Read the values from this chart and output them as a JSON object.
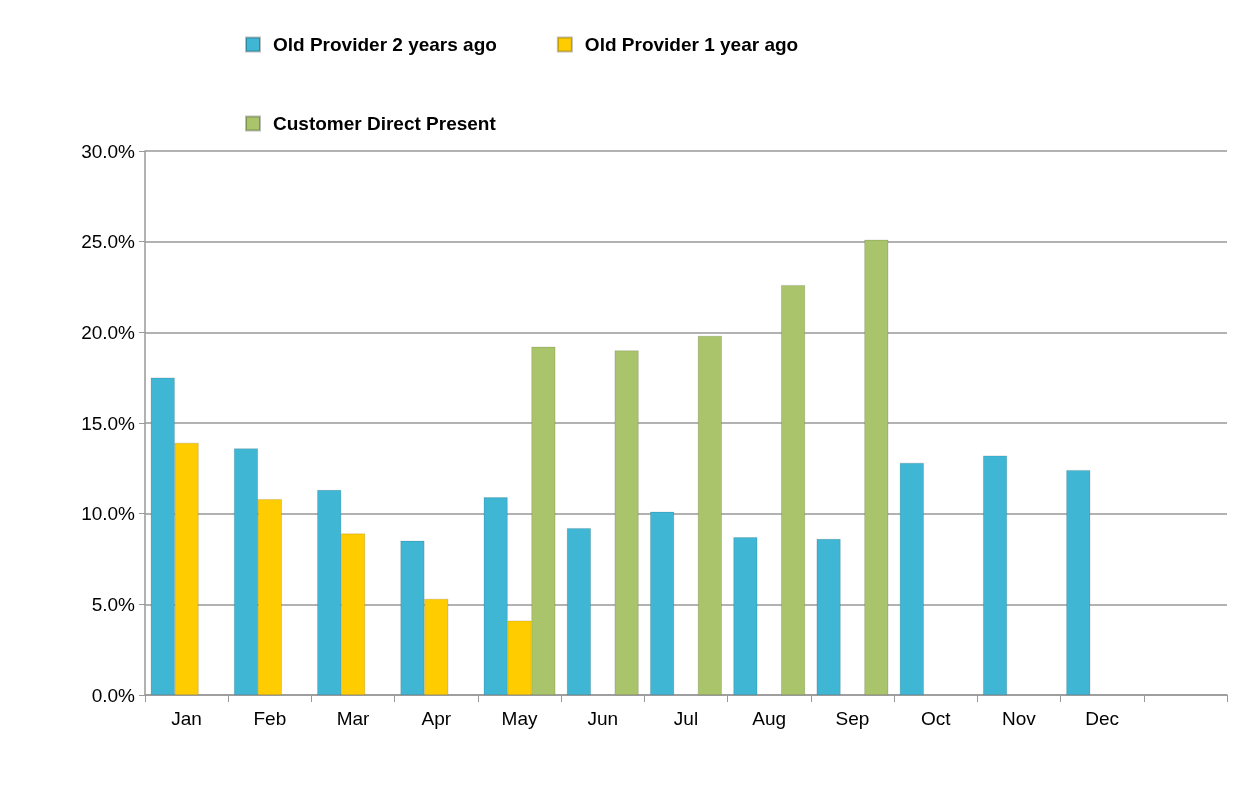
{
  "chart_data": {
    "type": "bar",
    "categories": [
      "Jan",
      "Feb",
      "Mar",
      "Apr",
      "May",
      "Jun",
      "Jul",
      "Aug",
      "Sep",
      "Oct",
      "Nov",
      "Dec",
      null
    ],
    "series": [
      {
        "name": "Old Provider 2 years ago",
        "color": "#3fb6d4",
        "values": [
          17.5,
          13.6,
          11.3,
          8.5,
          10.9,
          9.2,
          10.1,
          8.7,
          8.6,
          12.8,
          13.2,
          12.4,
          null
        ]
      },
      {
        "name": "Old Provider 1 year ago",
        "color": "#ffcc00",
        "values": [
          13.9,
          10.8,
          8.9,
          5.3,
          4.1,
          null,
          null,
          null,
          null,
          null,
          null,
          null,
          null
        ]
      },
      {
        "name": "Customer Direct Present",
        "color": "#a9c46a",
        "values": [
          null,
          null,
          null,
          null,
          19.2,
          19.0,
          19.8,
          22.6,
          25.1,
          null,
          null,
          null,
          null
        ]
      }
    ],
    "ylim": [
      0,
      30
    ],
    "yticks": [
      {
        "value": 0,
        "label": "0.0%"
      },
      {
        "value": 5,
        "label": "5.0%"
      },
      {
        "value": 10,
        "label": "10.0%"
      },
      {
        "value": 15,
        "label": "15.0%"
      },
      {
        "value": 20,
        "label": "20.0%"
      },
      {
        "value": 25,
        "label": "25.0%"
      },
      {
        "value": 30,
        "label": "30.0%"
      }
    ],
    "grid": "y",
    "legend": "top"
  }
}
